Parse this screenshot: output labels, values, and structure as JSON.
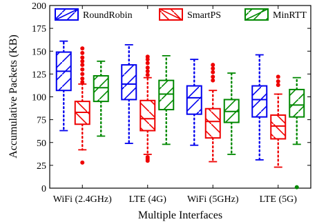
{
  "chart_data": {
    "type": "boxplot",
    "xlabel": "Multiple Interfaces",
    "ylabel": "Accumulative Packets (KB)",
    "ylim": [
      0,
      200
    ],
    "yticks": [
      0,
      25,
      50,
      75,
      100,
      125,
      150,
      175,
      200
    ],
    "grid": false,
    "legend_position": "top",
    "categories": [
      "WiFi (2.4GHz)",
      "LTE (4G)",
      "WiFi (5GHz)",
      "LTE (5G)"
    ],
    "series": [
      {
        "name": "RoundRobin",
        "color": "#0000ee",
        "boxes": [
          {
            "whisker_low": 63,
            "q1": 107,
            "median": 128,
            "q3": 149,
            "whisker_high": 161,
            "outliers": []
          },
          {
            "whisker_low": 49,
            "q1": 97,
            "median": 114,
            "q3": 135,
            "whisker_high": 157,
            "outliers": []
          },
          {
            "whisker_low": 47,
            "q1": 81,
            "median": 99,
            "q3": 112,
            "whisker_high": 141,
            "outliers": []
          },
          {
            "whisker_low": 31,
            "q1": 78,
            "median": 97,
            "q3": 112,
            "whisker_high": 146,
            "outliers": []
          }
        ]
      },
      {
        "name": "SmartPS",
        "color": "#ee0000",
        "boxes": [
          {
            "whisker_low": 42,
            "q1": 70,
            "median": 83,
            "q3": 95,
            "whisker_high": 114,
            "outliers": [
              28,
              116,
              120,
              125,
              130,
              135,
              139,
              143,
              148,
              153
            ]
          },
          {
            "whisker_low": 37,
            "q1": 63,
            "median": 76,
            "q3": 96,
            "whisker_high": 121,
            "outliers": [
              30,
              32,
              34,
              124,
              128,
              132,
              137,
              141,
              144
            ]
          },
          {
            "whisker_low": 29,
            "q1": 55,
            "median": 73,
            "q3": 87,
            "whisker_high": 107,
            "outliers": [
              118,
              122,
              127,
              131,
              135
            ]
          },
          {
            "whisker_low": 23,
            "q1": 54,
            "median": 68,
            "q3": 80,
            "whisker_high": 103,
            "outliers": [
              113,
              117,
              122
            ]
          }
        ]
      },
      {
        "name": "MinRTT",
        "color": "#008800",
        "boxes": [
          {
            "whisker_low": 57,
            "q1": 95,
            "median": 110,
            "q3": 123,
            "whisker_high": 139,
            "outliers": []
          },
          {
            "whisker_low": 48,
            "q1": 86,
            "median": 103,
            "q3": 118,
            "whisker_high": 145,
            "outliers": []
          },
          {
            "whisker_low": 37,
            "q1": 72,
            "median": 84,
            "q3": 97,
            "whisker_high": 126,
            "outliers": []
          },
          {
            "whisker_low": 48,
            "q1": 78,
            "median": 91,
            "q3": 108,
            "whisker_high": 121,
            "outliers": [
              1
            ]
          }
        ]
      }
    ]
  }
}
